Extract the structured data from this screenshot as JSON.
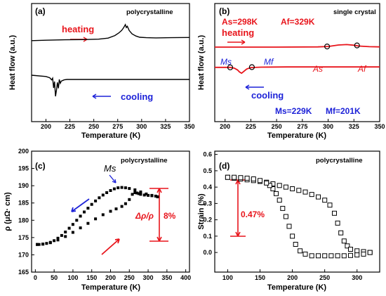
{
  "colors": {
    "red": "#e8141b",
    "blue": "#1d22d8",
    "black": "#000000"
  },
  "chart_data": [
    {
      "panel": "(a)",
      "type": "line",
      "tag": "polycrystalline",
      "xlabel": "Temperature (K)",
      "ylabel": "Heat flow (a.u.)",
      "xlim": [
        185,
        350
      ],
      "xticks": [
        "200",
        "225",
        "250",
        "275",
        "300",
        "325",
        "350"
      ],
      "yticks": false,
      "annotations": [
        "heating",
        "cooling"
      ],
      "series": [
        {
          "name": "heating",
          "color": "#000000",
          "x": [
            185,
            200,
            220,
            240,
            255,
            265,
            272,
            276,
            279,
            281,
            283,
            284,
            285,
            287,
            290,
            294,
            298,
            305,
            315,
            330,
            350
          ],
          "y": [
            0.62,
            0.63,
            0.64,
            0.645,
            0.655,
            0.68,
            0.74,
            0.8,
            0.86,
            0.92,
            1.0,
            0.93,
            0.96,
            0.86,
            0.78,
            0.73,
            0.7,
            0.69,
            0.685,
            0.69,
            0.695
          ]
        },
        {
          "name": "cooling",
          "color": "#000000",
          "x": [
            185,
            200,
            204,
            206,
            207,
            208,
            209,
            210,
            211,
            212,
            213,
            214,
            215,
            216,
            217,
            219,
            222,
            226,
            232,
            245,
            270,
            300,
            350
          ],
          "y": [
            0.05,
            0.02,
            -0.01,
            -0.06,
            -0.02,
            -0.25,
            -0.1,
            -0.45,
            -0.3,
            -0.12,
            -0.26,
            -0.05,
            -0.14,
            -0.09,
            -0.08,
            -0.06,
            -0.05,
            -0.05,
            -0.05,
            -0.05,
            -0.05,
            -0.05,
            -0.05
          ]
        }
      ]
    },
    {
      "panel": "(b)",
      "type": "line",
      "tag": "single crystal",
      "xlabel": "Temperature (K)",
      "ylabel": "Heat flow (a.u.)",
      "xlim": [
        190,
        350
      ],
      "xticks": [
        "200",
        "225",
        "250",
        "275",
        "300",
        "325",
        "350"
      ],
      "yticks": false,
      "heating_label": "heating",
      "cooling_label": "cooling",
      "As_label": "As=298K",
      "Af_label": "Af=329K",
      "Ms_value": "Ms=229K",
      "Mf_value": "Mf=201K",
      "markers": {
        "Ms": "Ms",
        "Mf": "Mf",
        "As": "As",
        "Af": "Af"
      },
      "series": [
        {
          "name": "heating",
          "color": "#e8141b",
          "x": [
            190,
            250,
            290,
            300,
            310,
            318,
            325,
            330,
            340,
            350
          ],
          "y": [
            0.6,
            0.6,
            0.605,
            0.615,
            0.65,
            0.66,
            0.645,
            0.625,
            0.61,
            0.605
          ]
        },
        {
          "name": "cooling",
          "color": "#e8141b",
          "x": [
            190,
            205,
            209,
            212,
            214,
            216,
            218,
            221,
            225,
            235,
            260,
            300,
            350
          ],
          "y": [
            0.12,
            0.12,
            0.1,
            0.06,
            0.01,
            -0.02,
            0.02,
            0.08,
            0.115,
            0.125,
            0.13,
            0.13,
            0.13
          ]
        }
      ],
      "points": {
        "Ms": [
          205,
          0.12
        ],
        "Mf": [
          226,
          0.125
        ],
        "As": [
          299,
          0.615
        ],
        "Af": [
          328,
          0.64
        ]
      }
    },
    {
      "panel": "(c)",
      "type": "scatter",
      "tag": "polycrystalline",
      "xlabel": "Temperature (K)",
      "ylabel": "ρ (μΩ· cm)",
      "xlim": [
        -10,
        410
      ],
      "ylim": [
        165,
        200
      ],
      "xticks": [
        0,
        50,
        100,
        150,
        200,
        250,
        300,
        350,
        400
      ],
      "yticks": [
        165,
        170,
        175,
        180,
        185,
        190,
        195,
        200
      ],
      "annotations": {
        "Ms": "Ms",
        "ratio_label": "Δρ/ρ",
        "ratio_value": "8%"
      },
      "series": [
        {
          "name": "cooling",
          "x": [
            325,
            310,
            295,
            280,
            265,
            250,
            240,
            230,
            220,
            210,
            200,
            190,
            180,
            170,
            160,
            150,
            140,
            130,
            120,
            110,
            100,
            90,
            80,
            70,
            60,
            50,
            40,
            30,
            20,
            10,
            5
          ],
          "y": [
            186.8,
            187.2,
            187.6,
            188.2,
            188.8,
            189.2,
            189.4,
            189.5,
            189.4,
            189.1,
            188.6,
            188.0,
            187.3,
            186.5,
            185.6,
            184.6,
            183.5,
            182.4,
            181.2,
            180.0,
            178.8,
            177.7,
            176.6,
            175.6,
            174.8,
            174.1,
            173.6,
            173.3,
            173.1,
            173.0,
            173.0
          ]
        },
        {
          "name": "heating",
          "x": [
            5,
            20,
            40,
            60,
            80,
            100,
            120,
            140,
            160,
            180,
            200,
            215,
            230,
            240,
            250,
            258,
            265,
            270,
            275,
            280,
            290,
            300,
            310,
            320,
            325
          ],
          "y": [
            173.0,
            173.1,
            173.5,
            174.3,
            175.3,
            176.5,
            177.8,
            179.1,
            180.4,
            181.6,
            182.6,
            183.3,
            184.0,
            184.8,
            186.0,
            187.5,
            188.0,
            187.9,
            187.7,
            187.5,
            187.3,
            187.2,
            187.1,
            187.0,
            186.8
          ]
        }
      ]
    },
    {
      "panel": "(d)",
      "type": "scatter",
      "tag": "polycrystalline",
      "xlabel": "Temperature (K)",
      "ylabel": "Strain (%)",
      "xlim": [
        80,
        335
      ],
      "ylim": [
        -0.12,
        0.62
      ],
      "xticks": [
        100,
        150,
        200,
        250,
        300
      ],
      "yticks": [
        "0.0",
        "0.1",
        "0.2",
        "0.3",
        "0.4",
        "0.5",
        "0.6"
      ],
      "annotations": {
        "strain_value": "0.47%"
      },
      "series": [
        {
          "name": "heating",
          "x": [
            100,
            110,
            120,
            130,
            140,
            150,
            160,
            170,
            180,
            190,
            200,
            210,
            220,
            230,
            240,
            250,
            258,
            265,
            270,
            275,
            280,
            285,
            290,
            300,
            310,
            320
          ],
          "y": [
            0.46,
            0.455,
            0.45,
            0.445,
            0.44,
            0.435,
            0.43,
            0.42,
            0.41,
            0.4,
            0.39,
            0.38,
            0.37,
            0.355,
            0.34,
            0.32,
            0.29,
            0.24,
            0.18,
            0.12,
            0.07,
            0.04,
            0.02,
            0.01,
            0.005,
            0.0
          ]
        },
        {
          "name": "cooling",
          "x": [
            320,
            310,
            300,
            290,
            280,
            270,
            260,
            250,
            240,
            230,
            220,
            212,
            205,
            200,
            195,
            190,
            185,
            180,
            175,
            170,
            165,
            160,
            150,
            140,
            130,
            120,
            110,
            100
          ],
          "y": [
            0.0,
            -0.01,
            -0.015,
            -0.018,
            -0.02,
            -0.02,
            -0.02,
            -0.02,
            -0.02,
            -0.02,
            -0.01,
            0.01,
            0.05,
            0.1,
            0.16,
            0.22,
            0.27,
            0.32,
            0.36,
            0.39,
            0.41,
            0.425,
            0.44,
            0.45,
            0.455,
            0.458,
            0.46,
            0.46
          ]
        }
      ]
    }
  ]
}
